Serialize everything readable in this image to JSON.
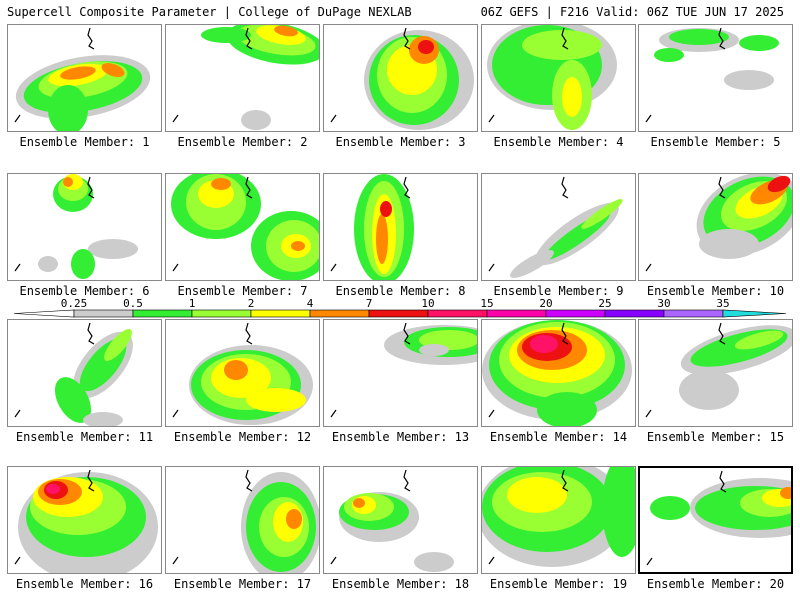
{
  "header": {
    "title": "Supercell Composite Parameter | College of DuPage NEXLAB",
    "run_info": "06Z GEFS | F216 Valid: 06Z TUE JUN 17 2025"
  },
  "colorbar": {
    "ticks": [
      "0.25",
      "0.5",
      "1",
      "2",
      "4",
      "7",
      "10",
      "15",
      "20",
      "25",
      "30",
      "35"
    ],
    "colors": [
      "#cccccc",
      "#33ee33",
      "#99ff33",
      "#ffff00",
      "#ff8800",
      "#ee1111",
      "#ff1166",
      "#ff00aa",
      "#cc00ff",
      "#8800ff",
      "#aa66ff",
      "#22dddd"
    ]
  },
  "panels": [
    {
      "label": "Ensemble Member: 1"
    },
    {
      "label": "Ensemble Member: 2"
    },
    {
      "label": "Ensemble Member: 3"
    },
    {
      "label": "Ensemble Member: 4"
    },
    {
      "label": "Ensemble Member: 5"
    },
    {
      "label": "Ensemble Member: 6"
    },
    {
      "label": "Ensemble Member: 7"
    },
    {
      "label": "Ensemble Member: 8"
    },
    {
      "label": "Ensemble Member: 9"
    },
    {
      "label": "Ensemble Member: 10"
    },
    {
      "label": "Ensemble Member: 11"
    },
    {
      "label": "Ensemble Member: 12"
    },
    {
      "label": "Ensemble Member: 13"
    },
    {
      "label": "Ensemble Member: 14"
    },
    {
      "label": "Ensemble Member: 15"
    },
    {
      "label": "Ensemble Member: 16"
    },
    {
      "label": "Ensemble Member: 17"
    },
    {
      "label": "Ensemble Member: 18"
    },
    {
      "label": "Ensemble Member: 19"
    },
    {
      "label": "Ensemble Member: 20",
      "highlighted": true
    }
  ]
}
